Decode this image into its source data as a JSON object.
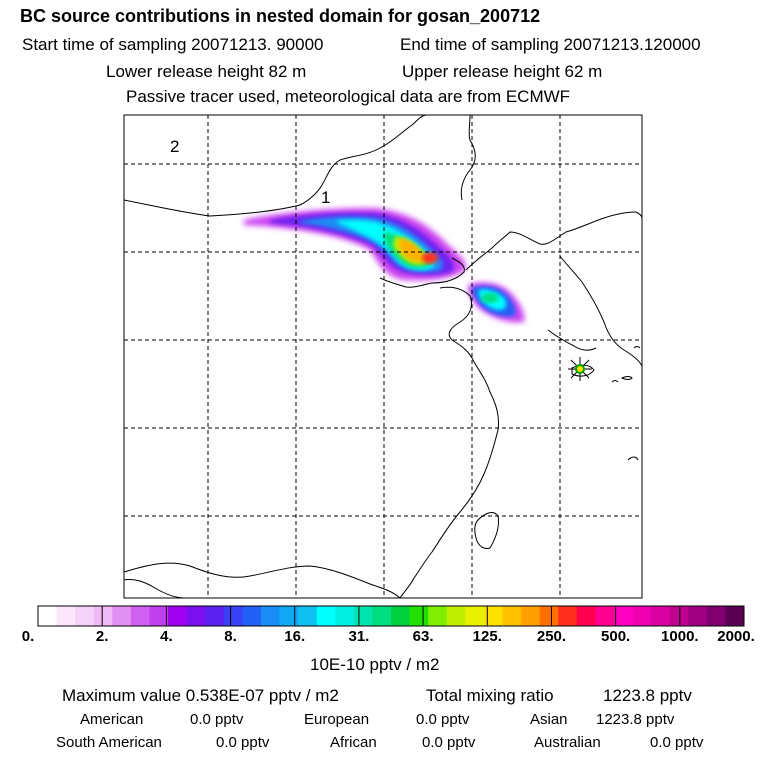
{
  "header": {
    "title": "BC  source contributions in nested domain for gosan_200712",
    "start_label": "Start time of sampling 20071213. 90000",
    "end_label": "End time of sampling 20071213.120000",
    "lower_label": "Lower release height   82 m",
    "upper_label": "Upper release height   62 m",
    "tracer_note": "Passive tracer used, meteorological data are from ECMWF"
  },
  "map": {
    "region_labels": [
      "1",
      "2"
    ],
    "receptor_marker": "star-icon"
  },
  "colorbar": {
    "tick_labels": [
      "0.",
      "2.",
      "4.",
      "8.",
      "16.",
      "31.",
      "63.",
      "125.",
      "250.",
      "500.",
      "1000.",
      "2000."
    ],
    "units": "10E-10 pptv / m2",
    "colors": [
      "#ffffff",
      "#fbe6fb",
      "#f5d2f8",
      "#efbaf5",
      "#e090f2",
      "#d060f0",
      "#c040f0",
      "#a000f0",
      "#7a10f0",
      "#5a20f0",
      "#3a40f5",
      "#2060f5",
      "#1a8cf5",
      "#10a8f5",
      "#10c0f0",
      "#00ffff",
      "#00eee0",
      "#00e5b0",
      "#00dd80",
      "#00d040",
      "#20e000",
      "#80ee00",
      "#c0f000",
      "#e8f000",
      "#ffe000",
      "#ffc000",
      "#ffa000",
      "#ff7000",
      "#ff3020",
      "#ff0050",
      "#ff0090",
      "#ff00c0",
      "#ee00b0",
      "#d800a0",
      "#c00090",
      "#a00080",
      "#800070",
      "#5a0050"
    ]
  },
  "footer": {
    "max_value": "Maximum value  0.538E-07 pptv / m2",
    "total_mixing": "Total mixing ratio",
    "total_value": "1223.8 pptv",
    "american_label": "American",
    "american_value": "0.0 pptv",
    "european_label": "European",
    "european_value": "0.0 pptv",
    "asian_label": "Asian",
    "asian_value": "1223.8 pptv",
    "south_american_label": "South American",
    "south_american_value": "0.0 pptv",
    "african_label": "African",
    "african_value": "0.0 pptv",
    "australian_label": "Australian",
    "australian_value": "0.0 pptv"
  }
}
